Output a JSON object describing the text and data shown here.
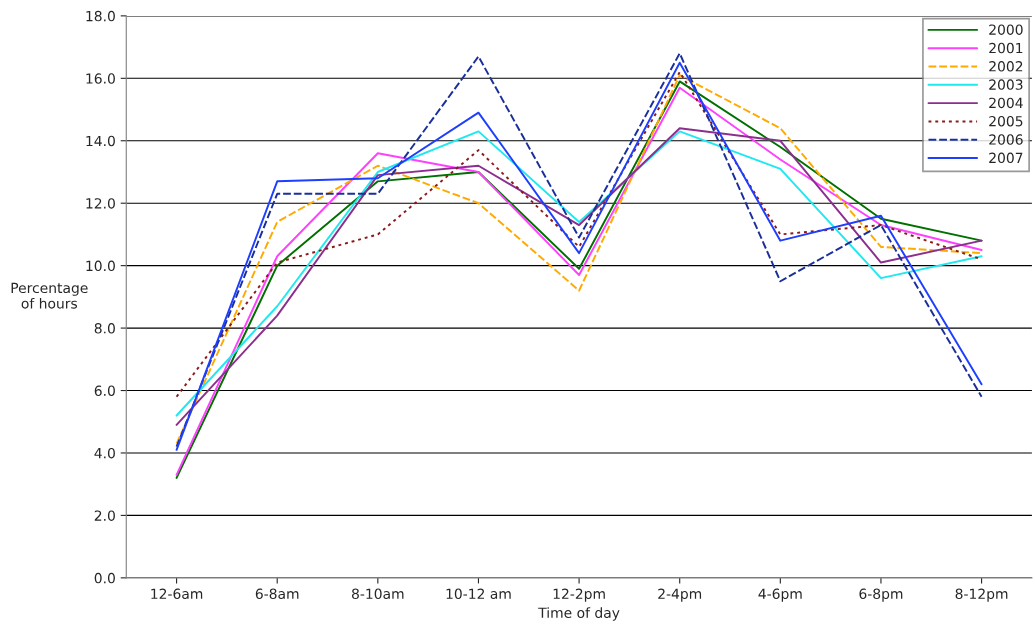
{
  "chart_data": {
    "type": "line",
    "xlabel": "Time of day",
    "ylabel": "Percentage\nof hours",
    "categories": [
      "12-6am",
      "6-8am",
      "8-10am",
      "10-12 am",
      "12-2pm",
      "2-4pm",
      "4-6pm",
      "6-8pm",
      "8-12pm"
    ],
    "ylim": [
      0,
      18
    ],
    "yticks": [
      {
        "value": 0,
        "label": "0.0"
      },
      {
        "value": 2,
        "label": "2.0"
      },
      {
        "value": 4,
        "label": "4.0"
      },
      {
        "value": 6,
        "label": "6.0"
      },
      {
        "value": 8,
        "label": "8.0"
      },
      {
        "value": 10,
        "label": "10.0"
      },
      {
        "value": 12,
        "label": "12.0"
      },
      {
        "value": 14,
        "label": "14.0"
      },
      {
        "value": 16,
        "label": "16.0"
      },
      {
        "value": 18,
        "label": "18.0"
      }
    ],
    "grid": "y",
    "legend": "top right",
    "marker": "none",
    "series": [
      {
        "name": "2000",
        "color": "#007000",
        "line_style": "solid",
        "values": [
          3.2,
          10.0,
          12.7,
          13.0,
          9.9,
          15.9,
          13.8,
          11.5,
          10.8
        ]
      },
      {
        "name": "2001",
        "color": "#ff40ff",
        "line_style": "solid",
        "values": [
          3.3,
          10.3,
          13.6,
          13.0,
          9.7,
          15.7,
          13.4,
          11.3,
          10.5
        ]
      },
      {
        "name": "2002",
        "color": "#ffaa00",
        "line_style": "dashed",
        "values": [
          4.3,
          11.4,
          13.2,
          12.0,
          9.2,
          16.1,
          14.4,
          10.6,
          10.4
        ]
      },
      {
        "name": "2003",
        "color": "#20e8f0",
        "line_style": "solid",
        "values": [
          5.2,
          8.7,
          13.0,
          14.3,
          11.4,
          14.3,
          13.1,
          9.6,
          10.3
        ]
      },
      {
        "name": "2004",
        "color": "#8b2f8f",
        "line_style": "solid",
        "values": [
          4.9,
          8.4,
          12.9,
          13.2,
          11.3,
          14.4,
          14.0,
          10.1,
          10.8
        ]
      },
      {
        "name": "2005",
        "color": "#8b1a1a",
        "line_style": "dotted",
        "values": [
          5.8,
          10.1,
          11.0,
          13.7,
          10.6,
          16.2,
          11.0,
          11.3,
          10.2
        ]
      },
      {
        "name": "2006",
        "color": "#1a2f9a",
        "line_style": "dashed",
        "values": [
          4.2,
          12.3,
          12.3,
          16.7,
          10.9,
          16.8,
          9.5,
          11.3,
          5.8
        ]
      },
      {
        "name": "2007",
        "color": "#1f3fff",
        "line_style": "solid",
        "values": [
          4.1,
          12.7,
          12.8,
          14.9,
          10.4,
          16.5,
          10.8,
          11.6,
          6.2
        ]
      }
    ]
  }
}
